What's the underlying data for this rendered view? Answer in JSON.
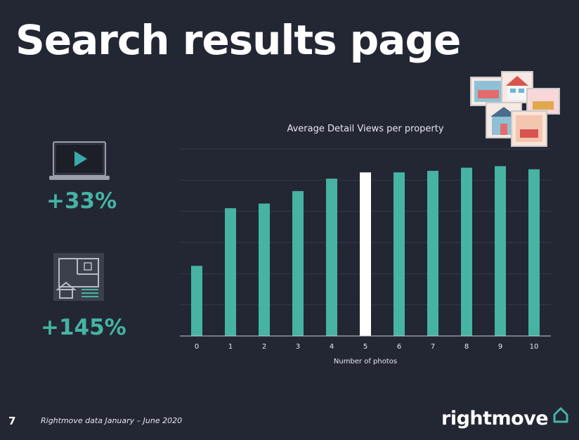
{
  "slide": {
    "title": "Search results page",
    "page_number": "7",
    "source": "Rightmove data  January – June 2020",
    "logo_text": "rightmove"
  },
  "stats": [
    {
      "icon": "video-play-icon",
      "value": "+33%"
    },
    {
      "icon": "floorplan-icon",
      "value": "+145%"
    }
  ],
  "colors": {
    "background": "#232734",
    "bar": "#46b3a3",
    "highlight_bar": "#ffffff",
    "accent": "#46b3a3"
  },
  "chart_data": {
    "type": "bar",
    "title": "Average Detail Views per property",
    "xlabel": "Number of photos",
    "ylabel": "",
    "categories": [
      "0",
      "1",
      "2",
      "3",
      "4",
      "5",
      "6",
      "7",
      "8",
      "9",
      "10"
    ],
    "values": [
      22.5,
      41,
      42.5,
      46.5,
      50.5,
      52.5,
      52.5,
      53,
      54,
      54.5,
      53.5
    ],
    "highlight_index": 5,
    "ylim": [
      0,
      60
    ],
    "grid": true,
    "legend": "none"
  }
}
